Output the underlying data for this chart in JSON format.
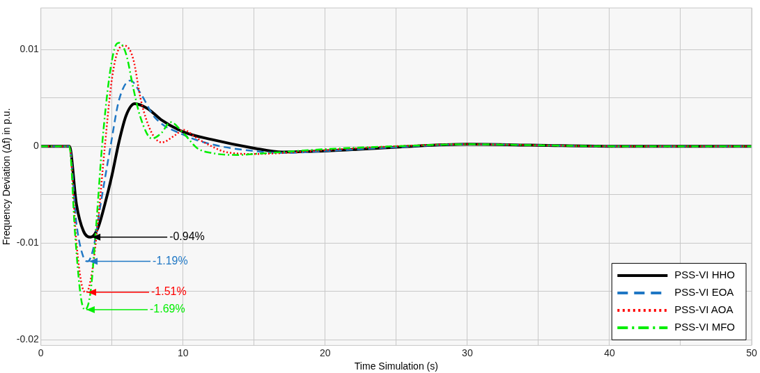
{
  "chart_data": {
    "type": "line",
    "xlabel": "Time Simulation (s)",
    "ylabel": "Frequency Deviation (Δf) in p.u.",
    "xlim": [
      0,
      50
    ],
    "xticks": [
      0,
      {
        "value": 5,
        "label": null
      },
      10,
      {
        "value": 15,
        "label": null
      },
      20,
      {
        "value": 25,
        "label": null
      },
      30,
      {
        "value": 35,
        "label": null
      },
      40,
      {
        "value": 45,
        "label": null
      },
      50
    ],
    "ylim": [
      -0.0206,
      0.0143
    ],
    "yticks": [
      -0.02,
      {
        "value": -0.015,
        "label": null
      },
      -0.01,
      {
        "value": -0.005,
        "label": null
      },
      0,
      {
        "value": 0.005,
        "label": null
      },
      0.01
    ],
    "grid": true,
    "legend": "bottom right",
    "marker": "none",
    "series": [
      {
        "name": "PSS-VI HHO",
        "color": "#000000",
        "line_style": "solid",
        "x": [
          0,
          2,
          2.5,
          3,
          3.5,
          4,
          4.5,
          5,
          5.5,
          6,
          6.6,
          7.5,
          8.5,
          10,
          12,
          15,
          17,
          20,
          25,
          30,
          35,
          40,
          50
        ],
        "values": [
          0,
          0,
          -0.006,
          -0.0088,
          -0.0094,
          -0.0085,
          -0.006,
          -0.003,
          0.0005,
          0.0032,
          0.0044,
          0.0039,
          0.0027,
          0.0015,
          0.0007,
          -0.0002,
          -0.0006,
          -0.0005,
          -0.0001,
          0.0002,
          0.0001,
          0,
          0
        ]
      },
      {
        "name": "PSS-VI EOA",
        "color": "#1f77c4",
        "line_style": "dashed",
        "x": [
          0,
          2,
          2.5,
          3,
          3.3,
          3.7,
          4.2,
          4.9,
          5.5,
          6.3,
          7,
          8,
          10,
          12,
          15,
          17,
          20,
          25,
          30,
          35,
          40,
          50
        ],
        "values": [
          0,
          0,
          -0.008,
          -0.0115,
          -0.0119,
          -0.0105,
          -0.006,
          0,
          0.0048,
          0.0068,
          0.0055,
          0.003,
          0.0012,
          0.0002,
          -0.0005,
          -0.0007,
          -0.0005,
          -0.0001,
          0.0002,
          0.0001,
          0,
          0
        ]
      },
      {
        "name": "PSS-VI AOA",
        "color": "#ff0000",
        "line_style": "dotted",
        "x": [
          0,
          2,
          2.5,
          2.9,
          3.2,
          3.6,
          4,
          4.5,
          5,
          5.5,
          5.9,
          6.5,
          7,
          7.5,
          8,
          8.5,
          9.5,
          10,
          11,
          12,
          13,
          15,
          17,
          20,
          25,
          30,
          35,
          40,
          50
        ],
        "values": [
          0,
          0,
          -0.01,
          -0.0145,
          -0.0151,
          -0.013,
          -0.008,
          0,
          0.007,
          0.0101,
          0.0104,
          0.009,
          0.005,
          0.0024,
          0.0009,
          0.0004,
          0.0012,
          0.0017,
          0.0008,
          0,
          -0.0006,
          -0.0008,
          -0.0007,
          -0.0004,
          0,
          0.0002,
          0.0001,
          0,
          0
        ]
      },
      {
        "name": "PSS-VI MFO",
        "color": "#00ee00",
        "line_style": "dashdot",
        "x": [
          0,
          2,
          2.4,
          2.8,
          3.1,
          3.5,
          3.9,
          4.3,
          4.8,
          5.2,
          5.5,
          6,
          6.5,
          7,
          7.8,
          8.5,
          9.1,
          10,
          11,
          12,
          14,
          15,
          17,
          20,
          25,
          30,
          35,
          40,
          50
        ],
        "values": [
          0,
          0,
          -0.009,
          -0.0155,
          -0.0169,
          -0.015,
          -0.008,
          0,
          0.007,
          0.0102,
          0.0107,
          0.0095,
          0.006,
          0.003,
          0.0008,
          0.0014,
          0.0025,
          0.0014,
          -0.0002,
          -0.0007,
          -0.0009,
          -0.0008,
          -0.0006,
          -0.0003,
          0,
          0.0002,
          0.0001,
          0,
          0
        ]
      }
    ],
    "annotations": [
      {
        "text": "-0.94%",
        "x": 3.5,
        "y": -0.0094
      },
      {
        "text": "-1.19%",
        "x": 3.3,
        "y": -0.0119
      },
      {
        "text": "-1.51%",
        "x": 3.2,
        "y": -0.0151
      },
      {
        "text": "-1.69%",
        "x": 3.1,
        "y": -0.0169
      }
    ]
  }
}
